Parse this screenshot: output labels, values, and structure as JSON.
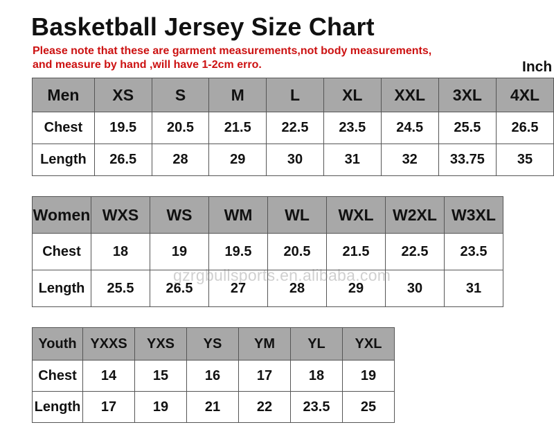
{
  "title": "Basketball Jersey Size Chart",
  "note_line1": "Please note that these are garment measurements,not  body measurements,",
  "note_line2": "and measure by hand ,will have 1-2cm erro.",
  "unit": "Inch",
  "watermark": "gzrgbullsports.en.alibaba.com",
  "colors": {
    "header_bg": "#a8a8a8",
    "note_red": "#cc1111",
    "border": "#555555"
  },
  "men": {
    "header": [
      "Men",
      "XS",
      "S",
      "M",
      "L",
      "XL",
      "XXL",
      "3XL",
      "4XL"
    ],
    "rows": [
      [
        "Chest",
        "19.5",
        "20.5",
        "21.5",
        "22.5",
        "23.5",
        "24.5",
        "25.5",
        "26.5"
      ],
      [
        "Length",
        "26.5",
        "28",
        "29",
        "30",
        "31",
        "32",
        "33.75",
        "35"
      ]
    ]
  },
  "women": {
    "header": [
      "Women",
      "WXS",
      "WS",
      "WM",
      "WL",
      "WXL",
      "W2XL",
      "W3XL"
    ],
    "rows": [
      [
        "Chest",
        "18",
        "19",
        "19.5",
        "20.5",
        "21.5",
        "22.5",
        "23.5"
      ],
      [
        "Length",
        "25.5",
        "26.5",
        "27",
        "28",
        "29",
        "30",
        "31"
      ]
    ]
  },
  "youth": {
    "header": [
      "Youth",
      "YXXS",
      "YXS",
      "YS",
      "YM",
      "YL",
      "YXL"
    ],
    "rows": [
      [
        "Chest",
        "14",
        "15",
        "16",
        "17",
        "18",
        "19"
      ],
      [
        "Length",
        "17",
        "19",
        "21",
        "22",
        "23.5",
        "25"
      ]
    ]
  }
}
